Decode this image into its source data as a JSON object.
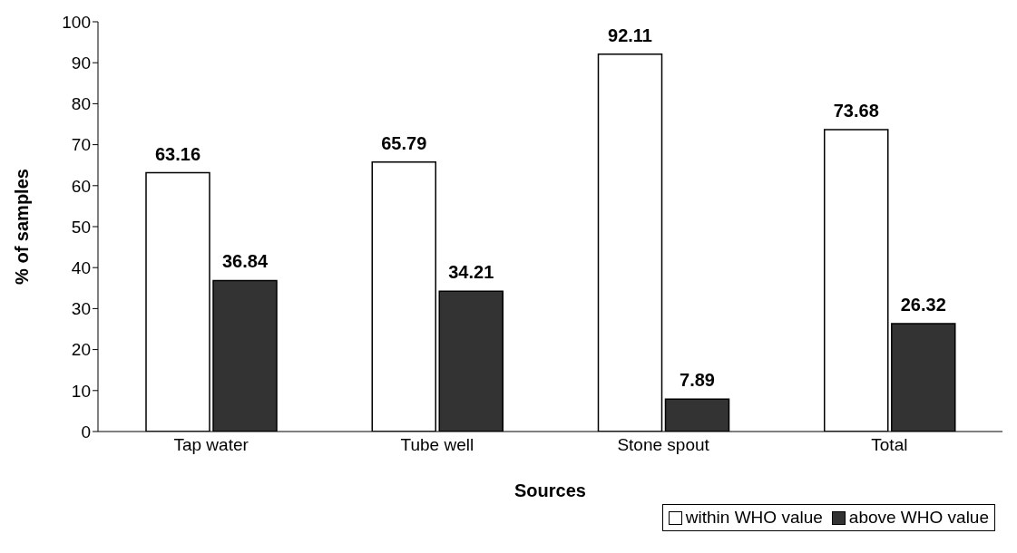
{
  "chart_data": {
    "type": "bar",
    "xlabel": "Sources",
    "ylabel": "% of samples",
    "categories": [
      "Tap water",
      "Tube well",
      "Stone spout",
      "Total"
    ],
    "series": [
      {
        "name": "within WHO value",
        "color": "#ffffff",
        "values": [
          63.16,
          65.79,
          92.11,
          73.68
        ]
      },
      {
        "name": "above WHO value",
        "color": "#333333",
        "values": [
          36.84,
          34.21,
          7.89,
          26.32
        ]
      }
    ],
    "ylim": [
      0,
      100
    ],
    "yticks": [
      0,
      10,
      20,
      30,
      40,
      50,
      60,
      70,
      80,
      90,
      100
    ],
    "grid": false,
    "legend": "bottom right",
    "data_labels": true
  }
}
